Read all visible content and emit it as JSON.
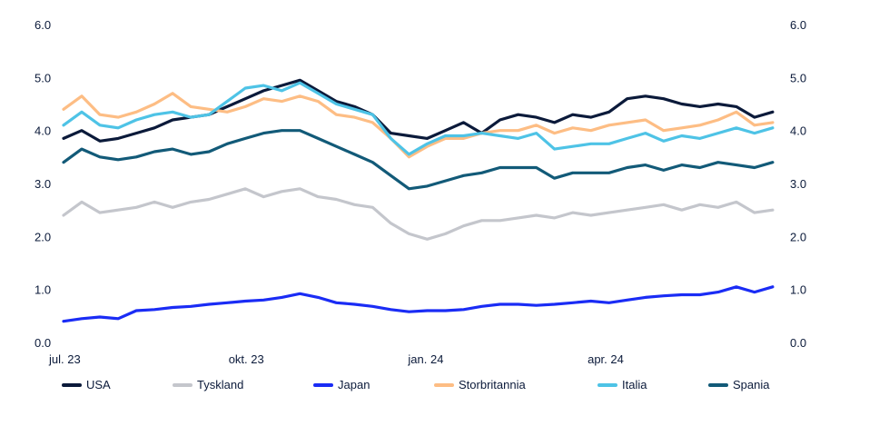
{
  "chart_data": {
    "type": "line",
    "title": "",
    "xlabel": "",
    "ylabel": "",
    "ylim": [
      0,
      6
    ],
    "yticks": [
      "0.0",
      "1.0",
      "2.0",
      "3.0",
      "4.0",
      "5.0",
      "6.0"
    ],
    "xlim_months_since_jul23": [
      0,
      11.9
    ],
    "xticks": [
      {
        "label": "jul. 23",
        "month": 0
      },
      {
        "label": "okt. 23",
        "month": 3
      },
      {
        "label": "jan. 24",
        "month": 6
      },
      {
        "label": "apr. 24",
        "month": 9
      }
    ],
    "x_start_month": 0,
    "x_end_month": 11.85,
    "grid": false,
    "legend_placement": "bottom",
    "series": [
      {
        "name": "USA",
        "color": "#0b1a3a",
        "values": [
          3.85,
          4.0,
          3.8,
          3.85,
          3.95,
          4.05,
          4.2,
          4.25,
          4.3,
          4.45,
          4.6,
          4.75,
          4.85,
          4.95,
          4.75,
          4.55,
          4.45,
          4.3,
          3.95,
          3.9,
          3.85,
          4.0,
          4.15,
          3.95,
          4.2,
          4.3,
          4.25,
          4.15,
          4.3,
          4.25,
          4.35,
          4.6,
          4.65,
          4.6,
          4.5,
          4.45,
          4.5,
          4.45,
          4.25,
          4.35
        ]
      },
      {
        "name": "Tyskland",
        "color": "#c4c6cc",
        "values": [
          2.4,
          2.65,
          2.45,
          2.5,
          2.55,
          2.65,
          2.55,
          2.65,
          2.7,
          2.8,
          2.9,
          2.75,
          2.85,
          2.9,
          2.75,
          2.7,
          2.6,
          2.55,
          2.25,
          2.05,
          1.95,
          2.05,
          2.2,
          2.3,
          2.3,
          2.35,
          2.4,
          2.35,
          2.45,
          2.4,
          2.45,
          2.5,
          2.55,
          2.6,
          2.5,
          2.6,
          2.55,
          2.65,
          2.45,
          2.5
        ]
      },
      {
        "name": "Japan",
        "color": "#1a2cf5",
        "values": [
          0.4,
          0.45,
          0.48,
          0.45,
          0.6,
          0.62,
          0.66,
          0.68,
          0.72,
          0.75,
          0.78,
          0.8,
          0.85,
          0.92,
          0.85,
          0.75,
          0.72,
          0.68,
          0.62,
          0.58,
          0.6,
          0.6,
          0.62,
          0.68,
          0.72,
          0.72,
          0.7,
          0.72,
          0.75,
          0.78,
          0.75,
          0.8,
          0.85,
          0.88,
          0.9,
          0.9,
          0.95,
          1.05,
          0.95,
          1.05
        ]
      },
      {
        "name": "Storbritannia",
        "color": "#fdbd84",
        "values": [
          4.4,
          4.65,
          4.3,
          4.25,
          4.35,
          4.5,
          4.7,
          4.45,
          4.4,
          4.35,
          4.45,
          4.6,
          4.55,
          4.65,
          4.55,
          4.3,
          4.25,
          4.15,
          3.85,
          3.5,
          3.7,
          3.85,
          3.85,
          3.95,
          4.0,
          4.0,
          4.1,
          3.95,
          4.05,
          4.0,
          4.1,
          4.15,
          4.2,
          4.0,
          4.05,
          4.1,
          4.2,
          4.35,
          4.1,
          4.15
        ]
      },
      {
        "name": "Italia",
        "color": "#4ec3e6",
        "values": [
          4.1,
          4.35,
          4.1,
          4.05,
          4.2,
          4.3,
          4.35,
          4.25,
          4.3,
          4.55,
          4.8,
          4.85,
          4.75,
          4.9,
          4.7,
          4.5,
          4.4,
          4.3,
          3.85,
          3.55,
          3.75,
          3.9,
          3.9,
          3.95,
          3.9,
          3.85,
          3.95,
          3.65,
          3.7,
          3.75,
          3.75,
          3.85,
          3.95,
          3.8,
          3.9,
          3.85,
          3.95,
          4.05,
          3.95,
          4.05
        ]
      },
      {
        "name": "Spania",
        "color": "#125a78",
        "values": [
          3.4,
          3.65,
          3.5,
          3.45,
          3.5,
          3.6,
          3.65,
          3.55,
          3.6,
          3.75,
          3.85,
          3.95,
          4.0,
          4.0,
          3.85,
          3.7,
          3.55,
          3.4,
          3.15,
          2.9,
          2.95,
          3.05,
          3.15,
          3.2,
          3.3,
          3.3,
          3.3,
          3.1,
          3.2,
          3.2,
          3.2,
          3.3,
          3.35,
          3.25,
          3.35,
          3.3,
          3.4,
          3.35,
          3.3,
          3.4
        ]
      }
    ]
  }
}
